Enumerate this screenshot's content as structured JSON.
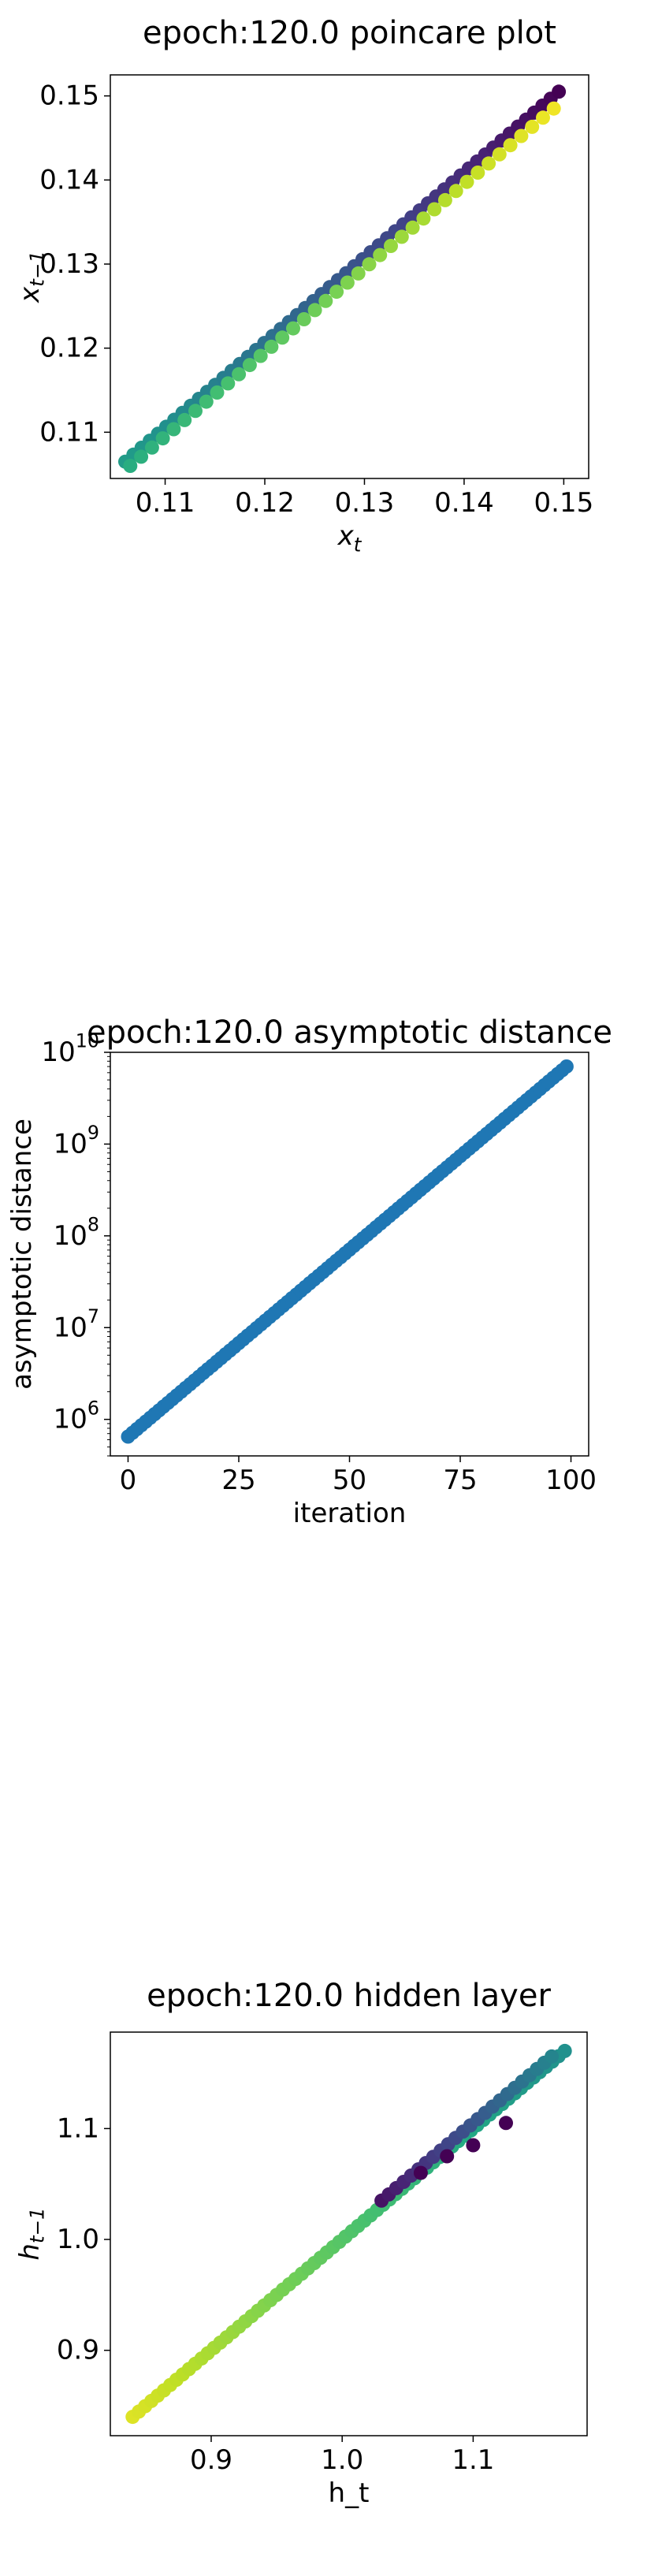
{
  "chart_data": [
    {
      "type": "scatter",
      "title": "epoch:120.0 poincare plot",
      "xlabel": "x_t",
      "ylabel": "x_{t-1}",
      "xlim": [
        0.1045,
        0.1525
      ],
      "ylim": [
        0.1045,
        0.1525
      ],
      "xticks": [
        "0.11",
        "0.12",
        "0.13",
        "0.14",
        "0.15"
      ],
      "yticks": [
        "0.11",
        "0.12",
        "0.13",
        "0.14",
        "0.15"
      ],
      "colormap": "viridis",
      "series": [
        {
          "role": "upper branch",
          "color_from": 0.55,
          "color_to": 0.0,
          "x_from": 0.106,
          "x_to": 0.1495,
          "y_from": 0.1065,
          "y_to": 0.1505,
          "points": 54
        },
        {
          "role": "lower branch",
          "color_from": 0.62,
          "color_to": 0.98,
          "x_from": 0.1065,
          "x_to": 0.149,
          "y_from": 0.106,
          "y_to": 0.1485,
          "points": 40
        }
      ],
      "grid": false
    },
    {
      "type": "scatter",
      "title": "epoch:120.0 asymptotic distance",
      "xlabel": "iteration",
      "ylabel": "asymptotic distance",
      "yscale": "log",
      "xlim": [
        -4,
        104
      ],
      "ylim": [
        400000,
        10000000000
      ],
      "xticks": [
        "0",
        "25",
        "50",
        "75",
        "100"
      ],
      "yticks": [
        "10^6",
        "10^7",
        "10^8",
        "10^9",
        "10^10"
      ],
      "color": "#1f77b4",
      "x_from": 0,
      "x_to": 99,
      "y_from": 650000,
      "y_to": 7000000000,
      "grid": false
    },
    {
      "type": "scatter",
      "title": "epoch:120.0 hidden layer",
      "xlabel": "h_t",
      "ylabel": "h_{t-1}",
      "xlim": [
        0.823,
        1.187
      ],
      "ylim": [
        0.823,
        1.187
      ],
      "xticks": [
        "0.9",
        "1.0",
        "1.1"
      ],
      "yticks": [
        "0.9",
        "1.0",
        "1.1"
      ],
      "colormap": "viridis",
      "series": [
        {
          "role": "main diagonal",
          "color_from": 0.95,
          "color_to": 0.5,
          "x_from": 0.84,
          "x_to": 1.17,
          "y_from": 0.84,
          "y_to": 1.17,
          "points": 70
        },
        {
          "role": "upper band",
          "color_from": 0.05,
          "color_to": 0.45,
          "x_from": 1.03,
          "x_to": 1.16,
          "y_from": 1.035,
          "y_to": 1.165,
          "points": 24
        },
        {
          "role": "outliers",
          "color": 0.0,
          "points_list": [
            [
              1.06,
              1.06
            ],
            [
              1.08,
              1.075
            ],
            [
              1.1,
              1.085
            ],
            [
              1.125,
              1.105
            ]
          ]
        }
      ],
      "grid": false
    }
  ]
}
